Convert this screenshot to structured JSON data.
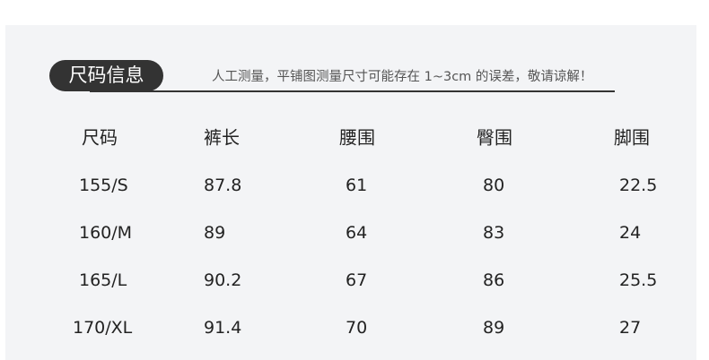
{
  "title": "尺码信息",
  "note": "人工测量，平铺图测量尺寸可能存在 1~3cm 的误差，敬请谅解！",
  "table": {
    "headers": [
      "尺码",
      "裤长",
      "腰围",
      "臀围",
      "脚围"
    ],
    "rows": [
      [
        "155/S",
        "87.8",
        "61",
        "80",
        "22.5"
      ],
      [
        "160/M",
        "89",
        "64",
        "83",
        "24"
      ],
      [
        "165/L",
        "90.2",
        "67",
        "86",
        "25.5"
      ],
      [
        "170/XL",
        "91.4",
        "70",
        "89",
        "27"
      ]
    ]
  }
}
